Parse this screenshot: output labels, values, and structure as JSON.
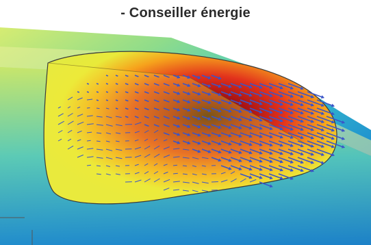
{
  "caption": "- Conseiller énergie",
  "colors": {
    "background": "#ffffff",
    "caption_text": "#2b2b2b",
    "vector_arrows": "#3a55c8",
    "outline": "#3a3a3a",
    "ramp": [
      "#0b4f9e",
      "#1d8fd0",
      "#3fc7c9",
      "#8fdc8a",
      "#e9ea3a",
      "#f6a21c",
      "#e2321c",
      "#9b0d12",
      "#3a0508"
    ]
  }
}
